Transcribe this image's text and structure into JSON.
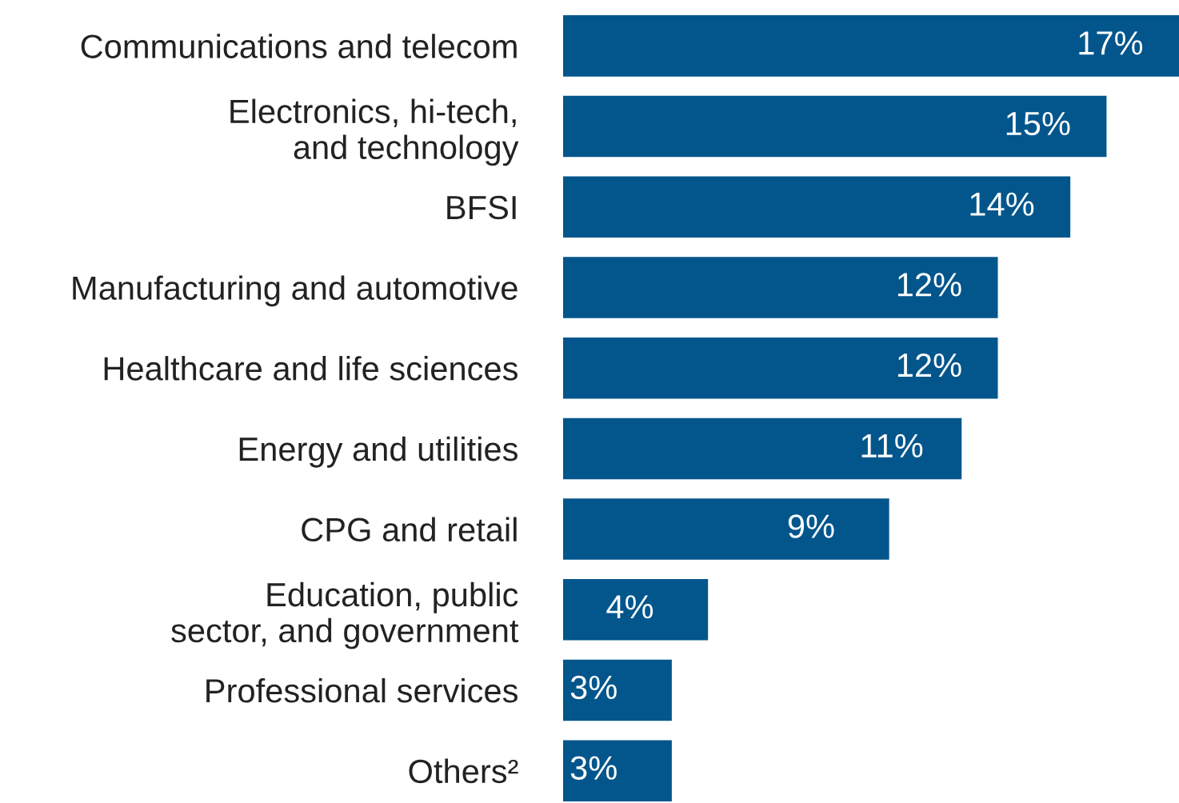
{
  "chart_data": {
    "type": "bar",
    "orientation": "horizontal",
    "categories": [
      "Communications and telecom",
      "Electronics, hi-tech,\nand technology",
      "BFSI",
      "Manufacturing and automotive",
      "Healthcare and life sciences",
      "Energy and utilities",
      "CPG and retail",
      "Education, public\nsector, and government",
      "Professional services",
      "Others²"
    ],
    "values": [
      17,
      15,
      14,
      12,
      12,
      11,
      9,
      4,
      3,
      3
    ],
    "value_labels": [
      "17%",
      "15%",
      "14%",
      "12%",
      "12%",
      "11%",
      "9%",
      "4%",
      "3%",
      "3%"
    ],
    "color": "#03568c",
    "grid": false,
    "legend": false,
    "tick_labels": "y"
  }
}
